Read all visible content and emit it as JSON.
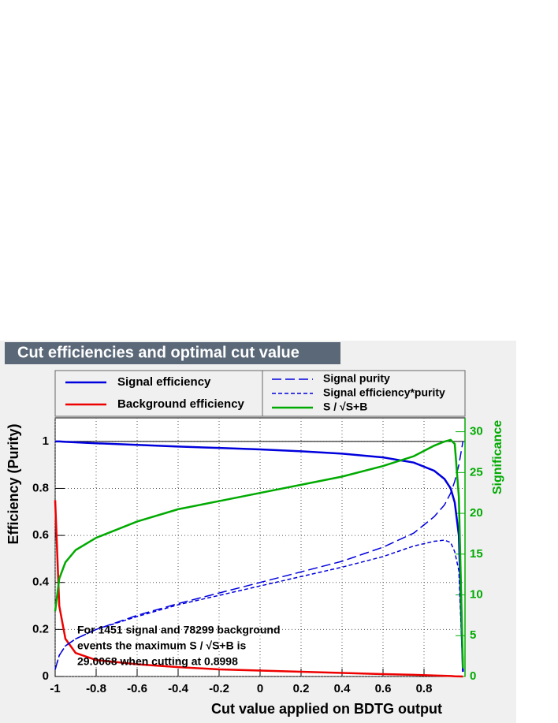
{
  "chart_data": {
    "type": "line",
    "title": "Cut efficiencies and optimal cut value",
    "xlabel": "Cut value applied on BDTG output",
    "ylabel": "Efficiency (Purity)",
    "y2label": "Significance",
    "annotations": [
      "For 1451 signal and 78299 background",
      "events the maximum S / √S+B is",
      "29.0068 when cutting at 0.8998"
    ],
    "xlim": [
      -1,
      1
    ],
    "ylim": [
      0,
      1.1
    ],
    "y2lim": [
      0,
      31.7
    ],
    "xticks": [
      -1,
      -0.8,
      -0.6,
      -0.4,
      -0.2,
      0,
      0.2,
      0.4,
      0.6,
      0.8
    ],
    "yticks": [
      0,
      0.2,
      0.4,
      0.6,
      0.8,
      1
    ],
    "y2ticks": [
      0,
      5,
      10,
      15,
      20,
      25,
      30
    ],
    "grid": true,
    "hline": 1,
    "x": [
      -1,
      -0.98,
      -0.95,
      -0.9,
      -0.8,
      -0.6,
      -0.4,
      -0.2,
      0,
      0.2,
      0.4,
      0.6,
      0.75,
      0.85,
      0.9,
      0.93,
      0.95,
      0.97,
      0.99
    ],
    "series": [
      {
        "name": "Signal efficiency",
        "color": "#0000dd",
        "style": "solid",
        "values": [
          1.0,
          1.0,
          0.998,
          0.996,
          0.992,
          0.985,
          0.978,
          0.972,
          0.966,
          0.958,
          0.948,
          0.932,
          0.91,
          0.875,
          0.84,
          0.8,
          0.74,
          0.6,
          0.02
        ]
      },
      {
        "name": "Background efficiency",
        "color": "#ee0000",
        "style": "solid",
        "values": [
          0.75,
          0.3,
          0.16,
          0.1,
          0.07,
          0.052,
          0.04,
          0.03,
          0.025,
          0.02,
          0.015,
          0.01,
          0.007,
          0.004,
          0.003,
          0.002,
          0.001,
          0.0005,
          0
        ]
      },
      {
        "name": "Signal purity",
        "color": "#0000dd",
        "style": "dashed",
        "values": [
          0.03,
          0.09,
          0.13,
          0.16,
          0.2,
          0.26,
          0.31,
          0.355,
          0.4,
          0.445,
          0.49,
          0.55,
          0.61,
          0.68,
          0.73,
          0.78,
          0.83,
          0.9,
          1.0
        ]
      },
      {
        "name": "Signal efficiency*purity",
        "color": "#0000dd",
        "style": "dotted",
        "values": [
          0.03,
          0.09,
          0.13,
          0.16,
          0.2,
          0.255,
          0.305,
          0.345,
          0.385,
          0.425,
          0.465,
          0.51,
          0.555,
          0.575,
          0.58,
          0.57,
          0.53,
          0.45,
          0.02
        ]
      },
      {
        "name": "S / √S+B",
        "color": "#00aa00",
        "style": "solid",
        "axis": "y2",
        "values": [
          8,
          12,
          14,
          15.5,
          17,
          19,
          20.5,
          21.5,
          22.5,
          23.5,
          24.5,
          25.8,
          27,
          28.3,
          28.8,
          29,
          28.5,
          22,
          1
        ]
      }
    ]
  }
}
